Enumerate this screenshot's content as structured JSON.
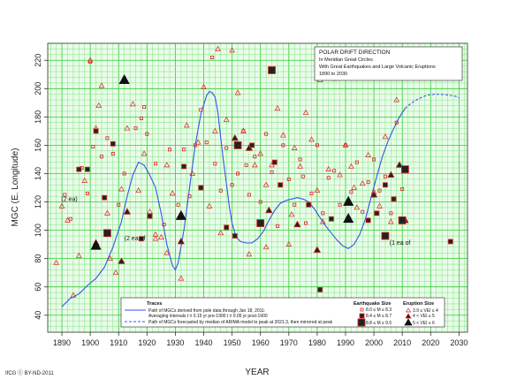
{
  "chart_data": {
    "type": "scatter",
    "title_box": {
      "title": "POLAR DRIFT DIRECTION",
      "line1": "In Meridian Great Circles",
      "line2": "With Great Earthquakes and Large Volcanic Eruptions",
      "line3": "1890 to 2030"
    },
    "xlabel": "YEAR",
    "ylabel": "MGC (E. Longitude)",
    "xlim": [
      1885,
      2033
    ],
    "ylim": [
      28,
      232
    ],
    "xticks": [
      1890,
      1900,
      1910,
      1920,
      1930,
      1940,
      1950,
      1960,
      1970,
      1980,
      1990,
      2000,
      2010,
      2020,
      2030
    ],
    "yticks": [
      40,
      60,
      80,
      100,
      120,
      140,
      160,
      180,
      200,
      220
    ],
    "grid": true,
    "credit": "IfCG ⓒ BY-ND-2011",
    "series": [
      {
        "name": "Path of MGCs derived from pole data through Jan 18, 2011:",
        "name2": "Averaging intervals t ± 0.15 yr pre-1900 t ± 0.05 yr post-1900",
        "style": "solid",
        "color": "#3355ee",
        "x": [
          1890,
          1893,
          1896,
          1899,
          1902,
          1905,
          1908,
          1911,
          1913,
          1915,
          1917,
          1919,
          1921,
          1923,
          1925,
          1927,
          1929,
          1930,
          1931,
          1933,
          1935,
          1937,
          1939,
          1941,
          1942,
          1943,
          1944,
          1945,
          1946,
          1947,
          1948,
          1949,
          1950,
          1951,
          1952,
          1953,
          1955,
          1957,
          1959,
          1961,
          1963,
          1965,
          1967,
          1969,
          1971,
          1973,
          1975,
          1977,
          1979,
          1981,
          1983,
          1985,
          1987,
          1989,
          1991,
          1993,
          1995,
          1997,
          1999,
          2001,
          2003,
          2005,
          2007,
          2009,
          2011
        ],
        "y": [
          46,
          52,
          55,
          61,
          66,
          74,
          88,
          106,
          124,
          139,
          148,
          146,
          139,
          130,
          112,
          90,
          75,
          72,
          77,
          100,
          130,
          160,
          182,
          195,
          198,
          197,
          194,
          183,
          165,
          148,
          133,
          117,
          105,
          98,
          94,
          92,
          91,
          91,
          94,
          99,
          107,
          114,
          119,
          121,
          122,
          123,
          122,
          120,
          115,
          109,
          103,
          98,
          93,
          89,
          87,
          90,
          97,
          108,
          123,
          138,
          152,
          163,
          172,
          180,
          186
        ]
      },
      {
        "name": "Path of MGCs forecasted by median of ARIMA model to peak at 2021.3, then mirrored at peak",
        "style": "dashed",
        "color": "#3355ee",
        "x": [
          2011,
          2013,
          2015,
          2017,
          2019,
          2021.3,
          2023,
          2025,
          2027,
          2029,
          2030
        ],
        "y": [
          186,
          189.5,
          192,
          194,
          195.5,
          196,
          196,
          195.8,
          195.2,
          194.5,
          193.5
        ]
      }
    ],
    "legend": {
      "placement": "bottom-center",
      "title": "Traces",
      "traces": [
        {
          "text": "Path of MGCs derived from pole data through Jan 18, 2011:",
          "style": "solid"
        },
        {
          "text": "Averaging intervals t ± 0.15 yr pre-1900 t ± 0.05 yr post-1900",
          "style": "none"
        },
        {
          "text": "Path of MGCs forecasted by median of ARIMA model to peak at 2021.3, then mirrored at peak",
          "style": "dashed"
        }
      ],
      "eq_title": "Earthquake Size",
      "eq_items": [
        {
          "text": "8.0 ≤ M ≤ 8.3",
          "size": "small"
        },
        {
          "text": "8.4 ≤ M ≤ 8.7",
          "size": "medium"
        },
        {
          "text": "8.8 ≤ M ≤ 9.5",
          "size": "large"
        }
      ],
      "er_title": "Eruption Size",
      "er_items": [
        {
          "text": "3.9 ≤ VEI ≤ 4",
          "size": "small"
        },
        {
          "text": "4 < VEI ≤ 5",
          "size": "medium"
        },
        {
          "text": "5 < VEI ≤ 6",
          "size": "large"
        }
      ]
    },
    "annotations": [
      {
        "text": "(2 ea)",
        "x": 1895.5,
        "y": 122,
        "anchor": "end"
      },
      {
        "text": "(2 ea of",
        "x": 1912,
        "y": 94,
        "anchor": "start"
      },
      {
        "text": "(1 ea of",
        "x": 2005.5,
        "y": 91,
        "anchor": "start"
      }
    ],
    "earthquakes_small": [
      [
        1891,
        125
      ],
      [
        1893,
        108
      ],
      [
        1897,
        144
      ],
      [
        1899,
        126
      ],
      [
        1901,
        159
      ],
      [
        1904,
        152
      ],
      [
        1906,
        165
      ],
      [
        1908,
        154
      ],
      [
        1910,
        118
      ],
      [
        1912,
        140
      ],
      [
        1916,
        172
      ],
      [
        1918,
        179
      ],
      [
        1920,
        168
      ],
      [
        1923,
        147
      ],
      [
        1926,
        104
      ],
      [
        1928,
        157
      ],
      [
        1931,
        118
      ],
      [
        1933,
        157
      ],
      [
        1935,
        124
      ],
      [
        1937,
        160
      ],
      [
        1939,
        185
      ],
      [
        1941,
        162
      ],
      [
        1944,
        147
      ],
      [
        1946,
        128
      ],
      [
        1948,
        158
      ],
      [
        1950,
        132
      ],
      [
        1952,
        140
      ],
      [
        1954,
        170
      ],
      [
        1956,
        125
      ],
      [
        1958,
        152
      ],
      [
        1960,
        120
      ],
      [
        1962,
        168
      ],
      [
        1964,
        141
      ],
      [
        1966,
        103
      ],
      [
        1968,
        160
      ],
      [
        1970,
        136
      ],
      [
        1972,
        118
      ],
      [
        1974,
        150
      ],
      [
        1976,
        105
      ],
      [
        1978,
        126
      ],
      [
        1980,
        160
      ],
      [
        1982,
        112
      ],
      [
        1984,
        137
      ],
      [
        1986,
        142
      ],
      [
        1988,
        118
      ],
      [
        1990,
        160
      ],
      [
        1992,
        127
      ],
      [
        1994,
        148
      ],
      [
        1996,
        113
      ],
      [
        1998,
        134
      ],
      [
        2000,
        150
      ],
      [
        2002,
        128
      ],
      [
        2004,
        138
      ],
      [
        2006,
        112
      ],
      [
        2008,
        176
      ],
      [
        2010,
        129
      ],
      [
        1919,
        187
      ],
      [
        1900,
        219
      ],
      [
        1943,
        222
      ],
      [
        1955,
        146
      ],
      [
        1975,
        138
      ]
    ],
    "earthquakes_medium": [
      [
        1896,
        143
      ],
      [
        1899,
        143
      ],
      [
        1902,
        170
      ],
      [
        1905,
        123
      ],
      [
        1908,
        161
      ],
      [
        1918,
        94
      ],
      [
        1921,
        110
      ],
      [
        1933,
        145
      ],
      [
        1939,
        130
      ],
      [
        1948,
        102
      ],
      [
        1951,
        96
      ],
      [
        1957,
        160
      ],
      [
        1965,
        148
      ],
      [
        1967,
        132
      ],
      [
        1977,
        118
      ],
      [
        1981,
        58
      ],
      [
        1985,
        108
      ],
      [
        1998,
        107
      ],
      [
        2001,
        112
      ],
      [
        2004,
        132
      ],
      [
        2007,
        122
      ],
      [
        2010,
        106
      ],
      [
        2027,
        92
      ]
    ],
    "earthquakes_large": [
      [
        1906,
        98
      ],
      [
        1952,
        160
      ],
      [
        1960,
        105
      ],
      [
        1964,
        213
      ],
      [
        2004,
        96
      ],
      [
        2010,
        107
      ],
      [
        2011,
        143
      ]
    ],
    "eruptions_small": [
      [
        1888,
        77
      ],
      [
        1890,
        117
      ],
      [
        1892,
        107
      ],
      [
        1894,
        54
      ],
      [
        1896,
        82
      ],
      [
        1898,
        135
      ],
      [
        1900,
        220
      ],
      [
        1902,
        172
      ],
      [
        1904,
        202
      ],
      [
        1906,
        112
      ],
      [
        1907,
        80
      ],
      [
        1909,
        70
      ],
      [
        1911,
        129
      ],
      [
        1913,
        172
      ],
      [
        1915,
        189
      ],
      [
        1917,
        128
      ],
      [
        1919,
        154
      ],
      [
        1921,
        113
      ],
      [
        1923,
        97
      ],
      [
        1925,
        95
      ],
      [
        1927,
        146
      ],
      [
        1929,
        126
      ],
      [
        1932,
        66
      ],
      [
        1934,
        174
      ],
      [
        1936,
        140
      ],
      [
        1938,
        162
      ],
      [
        1940,
        201
      ],
      [
        1942,
        117
      ],
      [
        1944,
        170
      ],
      [
        1946,
        98
      ],
      [
        1948,
        178
      ],
      [
        1950,
        227
      ],
      [
        1952,
        197
      ],
      [
        1954,
        170
      ],
      [
        1956,
        83
      ],
      [
        1958,
        146
      ],
      [
        1960,
        154
      ],
      [
        1962,
        132
      ],
      [
        1964,
        146
      ],
      [
        1966,
        186
      ],
      [
        1968,
        167
      ],
      [
        1970,
        90
      ],
      [
        1972,
        158
      ],
      [
        1974,
        145
      ],
      [
        1976,
        183
      ],
      [
        1978,
        164
      ],
      [
        1980,
        128
      ],
      [
        1982,
        106
      ],
      [
        1984,
        143
      ],
      [
        1986,
        207
      ],
      [
        1988,
        139
      ],
      [
        1990,
        160
      ],
      [
        1992,
        145
      ],
      [
        1994,
        116
      ],
      [
        1996,
        133
      ],
      [
        1998,
        153
      ],
      [
        2000,
        127
      ],
      [
        2002,
        117
      ],
      [
        2004,
        166
      ],
      [
        2006,
        106
      ],
      [
        2008,
        192
      ],
      [
        1997,
        209
      ],
      [
        1981,
        206
      ],
      [
        1903,
        188
      ],
      [
        1923,
        94
      ],
      [
        1945,
        228
      ],
      [
        1962,
        88
      ],
      [
        1971,
        111
      ],
      [
        1993,
        130
      ],
      [
        1927,
        84
      ]
    ],
    "eruptions_medium": [
      [
        1902,
        91
      ],
      [
        1911,
        78
      ],
      [
        1913,
        113
      ],
      [
        1932,
        92
      ],
      [
        1951,
        165
      ],
      [
        1956,
        158
      ],
      [
        1963,
        114
      ],
      [
        1973,
        104
      ],
      [
        1980,
        86
      ],
      [
        1991,
        109
      ],
      [
        2000,
        125
      ],
      [
        2006,
        139
      ],
      [
        2009,
        146
      ],
      [
        2011,
        107
      ]
    ],
    "eruptions_large": [
      [
        1902,
        89
      ],
      [
        1912,
        206
      ],
      [
        1932,
        110
      ],
      [
        1991,
        120
      ],
      [
        1991,
        108
      ]
    ]
  }
}
